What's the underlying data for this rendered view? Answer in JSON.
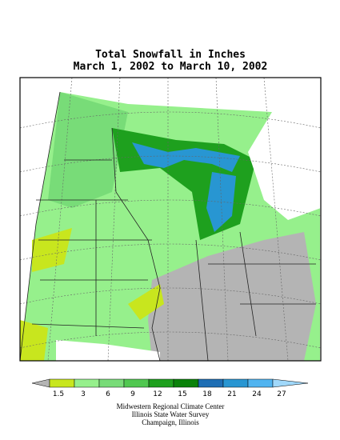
{
  "title": [
    "Total Snowfall in Inches",
    "March 1, 2002 to March 10, 2002"
  ],
  "legend": {
    "ticks": [
      1.5,
      3,
      6,
      9,
      12,
      15,
      18,
      21,
      24,
      27
    ],
    "colors": [
      "#b4b4b4",
      "#c8e61e",
      "#96f08c",
      "#78dc78",
      "#50c850",
      "#1ea01e",
      "#0a820a",
      "#1e6eb4",
      "#2896d2",
      "#50b4f0",
      "#a0d8fa"
    ]
  },
  "credits": [
    "Midwestern Regional Climate Center",
    "Illinois State Water Survey",
    "Champaign, Illinois"
  ]
}
